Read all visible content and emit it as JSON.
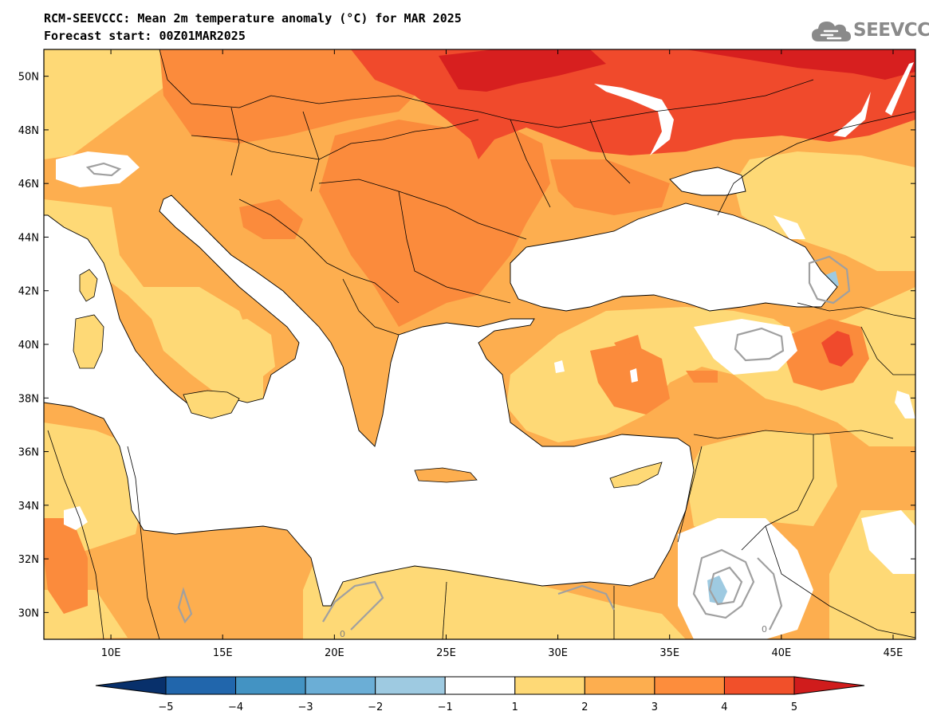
{
  "header": {
    "title": "RCM-SEEVCCC: Mean 2m temperature anomaly (°C) for MAR 2025",
    "subtitle": "Forecast start: 00Z01MAR2025"
  },
  "logo": {
    "text": "SEEVCCC",
    "icon": "cloud-icon"
  },
  "map": {
    "lon_range": [
      7,
      46
    ],
    "lat_range": [
      29,
      51
    ],
    "lat_ticks": [
      "50N",
      "48N",
      "46N",
      "44N",
      "42N",
      "40N",
      "38N",
      "36N",
      "34N",
      "32N",
      "30N"
    ],
    "lon_ticks": [
      "10E",
      "15E",
      "20E",
      "25E",
      "30E",
      "35E",
      "40E",
      "45E"
    ],
    "contour_labels": [
      "0",
      "0"
    ]
  },
  "legend": {
    "ticks": [
      "−5",
      "−4",
      "−3",
      "−2",
      "−1",
      "1",
      "2",
      "3",
      "4",
      "5"
    ],
    "colors": [
      "#08306b",
      "#2166ac",
      "#4393c3",
      "#6baed6",
      "#9ecae1",
      "#ffffff",
      "#fed976",
      "#fdae4f",
      "#fd8d3c",
      "#f1502a",
      "#d01c1c"
    ]
  },
  "colors": {
    "anomaly_1_2": "#fed976",
    "anomaly_2_3": "#fdae4f",
    "anomaly_3_4": "#fb8b3c",
    "anomaly_4_5": "#f04a2c",
    "anomaly_gt5": "#d71f1f",
    "anomaly_neg_1_2": "#9ecae1",
    "sea": "#ffffff",
    "zero_contour": "#a0a0a0"
  }
}
